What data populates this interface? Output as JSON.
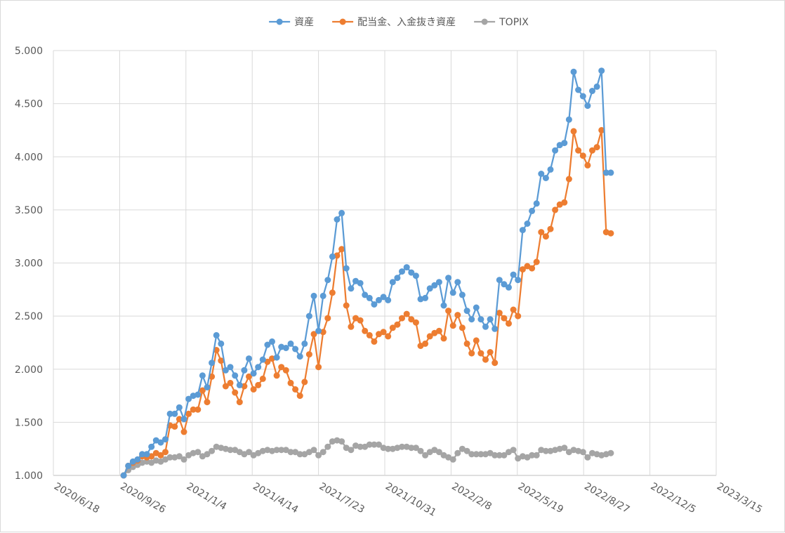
{
  "chart_data": {
    "type": "line",
    "title": "",
    "xlabel": "",
    "ylabel": "",
    "grid": true,
    "legend_position": "top",
    "ylim": [
      1.0,
      5.0
    ],
    "y_ticks": [
      1.0,
      1.5,
      2.0,
      2.5,
      3.0,
      3.5,
      4.0,
      4.5,
      5.0
    ],
    "y_tick_labels": [
      "1.000",
      "1.500",
      "2.000",
      "2.500",
      "3.000",
      "3.500",
      "4.000",
      "4.500",
      "5.000"
    ],
    "xlim": [
      "2020-06-18",
      "2023-03-15"
    ],
    "x_ticks": [
      "2020-06-18",
      "2020-09-26",
      "2021-01-04",
      "2021-04-14",
      "2021-07-23",
      "2021-10-31",
      "2022-02-08",
      "2022-05-19",
      "2022-08-27",
      "2022-12-05",
      "2023-03-15"
    ],
    "x_tick_labels": [
      "2020/6/18",
      "2020/9/26",
      "2021/1/4",
      "2021/4/14",
      "2021/7/23",
      "2021/10/31",
      "2022/2/8",
      "2022/5/19",
      "2022/8/27",
      "2022/12/5",
      "2023/3/15"
    ],
    "x_start": "2020-10-02",
    "x_step_days": 7,
    "series": [
      {
        "name": "資産",
        "color": "#5b9bd5",
        "values": [
          1.0,
          1.09,
          1.13,
          1.15,
          1.2,
          1.2,
          1.27,
          1.33,
          1.31,
          1.34,
          1.58,
          1.58,
          1.64,
          1.53,
          1.72,
          1.75,
          1.76,
          1.94,
          1.83,
          2.06,
          2.32,
          2.24,
          1.99,
          2.02,
          1.94,
          1.85,
          1.99,
          2.1,
          1.96,
          2.02,
          2.09,
          2.23,
          2.26,
          2.11,
          2.21,
          2.2,
          2.24,
          2.19,
          2.12,
          2.24,
          2.5,
          2.69,
          2.36,
          2.69,
          2.84,
          3.06,
          3.41,
          3.47,
          2.95,
          2.76,
          2.83,
          2.81,
          2.7,
          2.67,
          2.61,
          2.65,
          2.68,
          2.65,
          2.82,
          2.86,
          2.92,
          2.96,
          2.91,
          2.88,
          2.66,
          2.67,
          2.76,
          2.79,
          2.82,
          2.6,
          2.86,
          2.72,
          2.82,
          2.7,
          2.55,
          2.47,
          2.58,
          2.47,
          2.4,
          2.47,
          2.38,
          2.84,
          2.8,
          2.77,
          2.89,
          2.84,
          3.31,
          3.37,
          3.49,
          3.56,
          3.84,
          3.8,
          3.88,
          4.06,
          4.11,
          4.13,
          4.35,
          4.8,
          4.63,
          4.57,
          4.48,
          4.62,
          4.66,
          4.81,
          3.85,
          3.85
        ]
      },
      {
        "name": "配当金、入金抜き資産",
        "color": "#ed7d31",
        "values": [
          1.0,
          1.09,
          1.12,
          1.14,
          1.18,
          1.17,
          1.18,
          1.21,
          1.19,
          1.22,
          1.47,
          1.46,
          1.53,
          1.41,
          1.58,
          1.62,
          1.62,
          1.8,
          1.69,
          1.93,
          2.18,
          2.08,
          1.84,
          1.87,
          1.78,
          1.69,
          1.84,
          1.93,
          1.81,
          1.85,
          1.91,
          2.07,
          2.1,
          1.94,
          2.02,
          1.99,
          1.87,
          1.81,
          1.75,
          1.88,
          2.14,
          2.33,
          2.02,
          2.35,
          2.48,
          2.72,
          3.07,
          3.13,
          2.6,
          2.4,
          2.48,
          2.46,
          2.36,
          2.32,
          2.26,
          2.33,
          2.35,
          2.31,
          2.39,
          2.42,
          2.48,
          2.52,
          2.47,
          2.44,
          2.22,
          2.24,
          2.31,
          2.34,
          2.36,
          2.29,
          2.55,
          2.41,
          2.51,
          2.39,
          2.24,
          2.15,
          2.27,
          2.15,
          2.09,
          2.16,
          2.06,
          2.53,
          2.48,
          2.43,
          2.56,
          2.5,
          2.94,
          2.97,
          2.95,
          3.01,
          3.29,
          3.25,
          3.32,
          3.5,
          3.55,
          3.57,
          3.79,
          4.24,
          4.06,
          4.01,
          3.92,
          4.06,
          4.09,
          4.25,
          3.29,
          3.28
        ]
      },
      {
        "name": "TOPIX",
        "color": "#a5a5a5",
        "values": [
          1.0,
          1.05,
          1.08,
          1.1,
          1.12,
          1.13,
          1.12,
          1.14,
          1.13,
          1.15,
          1.17,
          1.17,
          1.18,
          1.15,
          1.19,
          1.21,
          1.22,
          1.18,
          1.2,
          1.23,
          1.27,
          1.26,
          1.25,
          1.24,
          1.24,
          1.22,
          1.2,
          1.22,
          1.19,
          1.21,
          1.23,
          1.24,
          1.23,
          1.24,
          1.24,
          1.24,
          1.22,
          1.22,
          1.2,
          1.2,
          1.22,
          1.24,
          1.19,
          1.22,
          1.27,
          1.32,
          1.33,
          1.32,
          1.26,
          1.24,
          1.28,
          1.27,
          1.27,
          1.29,
          1.29,
          1.29,
          1.26,
          1.25,
          1.25,
          1.26,
          1.27,
          1.27,
          1.26,
          1.26,
          1.23,
          1.19,
          1.22,
          1.24,
          1.22,
          1.19,
          1.17,
          1.15,
          1.21,
          1.25,
          1.23,
          1.2,
          1.2,
          1.2,
          1.2,
          1.21,
          1.19,
          1.19,
          1.19,
          1.22,
          1.24,
          1.16,
          1.18,
          1.17,
          1.19,
          1.19,
          1.24,
          1.23,
          1.23,
          1.24,
          1.25,
          1.26,
          1.22,
          1.24,
          1.23,
          1.22,
          1.17,
          1.21,
          1.2,
          1.19,
          1.2,
          1.21
        ]
      }
    ]
  }
}
